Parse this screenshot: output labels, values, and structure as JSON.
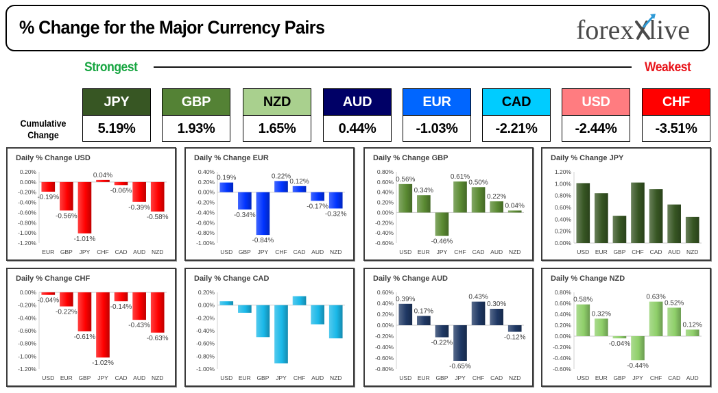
{
  "header": {
    "title": "% Change for the Major Currency Pairs"
  },
  "brand": {
    "part1": "forex",
    "part2": "live"
  },
  "strength": {
    "strongest": "Strongest",
    "weakest": "Weakest"
  },
  "cumulative_label_line1": "Cumulative",
  "cumulative_label_line2": "Change",
  "tiles": [
    {
      "code": "JPY",
      "value": "5.19%",
      "bg": "#375623",
      "fg": "#ffffff"
    },
    {
      "code": "GBP",
      "value": "1.93%",
      "bg": "#548235",
      "fg": "#ffffff"
    },
    {
      "code": "NZD",
      "value": "1.65%",
      "bg": "#a9d08e",
      "fg": "#000000"
    },
    {
      "code": "AUD",
      "value": "0.44%",
      "bg": "#000066",
      "fg": "#ffffff"
    },
    {
      "code": "EUR",
      "value": "-1.03%",
      "bg": "#0066ff",
      "fg": "#ffffff"
    },
    {
      "code": "CAD",
      "value": "-2.21%",
      "bg": "#00ccff",
      "fg": "#000000"
    },
    {
      "code": "USD",
      "value": "-2.44%",
      "bg": "#ff7c80",
      "fg": "#ffffff"
    },
    {
      "code": "CHF",
      "value": "-3.51%",
      "bg": "#ff0000",
      "fg": "#ffffff"
    }
  ],
  "chart_data": [
    {
      "type": "bar",
      "title": "Daily % Change USD",
      "categories": [
        "EUR",
        "GBP",
        "JPY",
        "CHF",
        "CAD",
        "AUD",
        "NZD"
      ],
      "values": [
        -0.19,
        -0.56,
        -1.01,
        0.04,
        -0.06,
        -0.39,
        -0.58
      ],
      "ylim": [
        -1.2,
        0.2
      ],
      "step": 0.2,
      "color": "#ff0000",
      "data_labels": true,
      "grid": false
    },
    {
      "type": "bar",
      "title": "Daily % Change EUR",
      "categories": [
        "USD",
        "GBP",
        "JPY",
        "CHF",
        "CAD",
        "AUD",
        "NZD"
      ],
      "values": [
        0.19,
        -0.34,
        -0.84,
        0.22,
        0.12,
        -0.17,
        -0.32
      ],
      "ylim": [
        -1.0,
        0.4
      ],
      "step": 0.2,
      "color": "#0033ff",
      "data_labels": true,
      "grid": false
    },
    {
      "type": "bar",
      "title": "Daily % Change GBP",
      "categories": [
        "USD",
        "EUR",
        "JPY",
        "CHF",
        "CAD",
        "AUD",
        "NZD"
      ],
      "values": [
        0.56,
        0.34,
        -0.46,
        0.61,
        0.5,
        0.22,
        0.04
      ],
      "ylim": [
        -0.6,
        0.8
      ],
      "step": 0.2,
      "color": "#5a8a32",
      "data_labels": true,
      "grid": false
    },
    {
      "type": "bar",
      "title": "Daily % Change JPY",
      "categories": [
        "USD",
        "EUR",
        "GBP",
        "CHF",
        "CAD",
        "AUD",
        "NZD"
      ],
      "values": [
        1.01,
        0.84,
        0.46,
        1.02,
        0.91,
        0.65,
        0.44
      ],
      "ylim": [
        0.0,
        1.2
      ],
      "step": 0.2,
      "color": "#375623",
      "data_labels": false,
      "grid": false
    },
    {
      "type": "bar",
      "title": "Daily % Change CHF",
      "categories": [
        "USD",
        "EUR",
        "GBP",
        "JPY",
        "CAD",
        "AUD",
        "NZD"
      ],
      "values": [
        -0.04,
        -0.22,
        -0.61,
        -1.02,
        -0.14,
        -0.43,
        -0.63
      ],
      "ylim": [
        -1.2,
        0.0
      ],
      "step": 0.2,
      "color": "#ff0000",
      "data_labels": true,
      "grid": false
    },
    {
      "type": "bar",
      "title": "Daily % Change CAD",
      "categories": [
        "USD",
        "EUR",
        "GBP",
        "JPY",
        "CHF",
        "AUD",
        "NZD"
      ],
      "values": [
        0.06,
        -0.12,
        -0.5,
        -0.91,
        0.14,
        -0.3,
        -0.52
      ],
      "ylim": [
        -1.0,
        0.2
      ],
      "step": 0.2,
      "color": "#1ab8e8",
      "data_labels": false,
      "grid": false
    },
    {
      "type": "bar",
      "title": "Daily % Change AUD",
      "categories": [
        "USD",
        "EUR",
        "GBP",
        "JPY",
        "CHF",
        "CAD",
        "NZD"
      ],
      "values": [
        0.39,
        0.17,
        -0.22,
        -0.65,
        0.43,
        0.3,
        -0.12
      ],
      "ylim": [
        -0.8,
        0.6
      ],
      "step": 0.2,
      "color": "#1f3864",
      "data_labels": true,
      "grid": false
    },
    {
      "type": "bar",
      "title": "Daily % Change NZD",
      "categories": [
        "USD",
        "EUR",
        "GBP",
        "JPY",
        "CHF",
        "CAD",
        "AUD"
      ],
      "values": [
        0.58,
        0.32,
        -0.04,
        -0.44,
        0.63,
        0.52,
        0.12
      ],
      "ylim": [
        -0.6,
        0.8
      ],
      "step": 0.2,
      "color": "#8fcf6a",
      "data_labels": true,
      "grid": false
    }
  ]
}
